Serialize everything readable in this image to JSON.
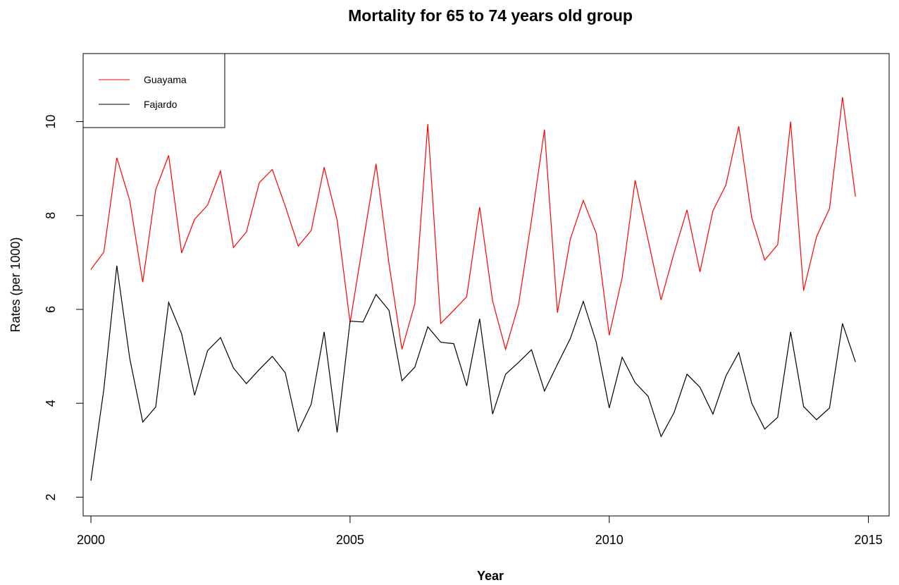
{
  "chart_data": {
    "type": "line",
    "title": "Mortality for 65 to 74 years old group",
    "xlabel": "Year",
    "ylabel": "Rates (per 1000)",
    "xlim": [
      1999.85,
      2015.4
    ],
    "ylim": [
      1.6,
      11.45
    ],
    "xticks": [
      2000,
      2005,
      2010,
      2015
    ],
    "xtick_labels": [
      "2000",
      "2005",
      "2010",
      "2015"
    ],
    "yticks": [
      2,
      4,
      6,
      8,
      10
    ],
    "ytick_labels": [
      "2",
      "4",
      "6",
      "8",
      "10"
    ],
    "grid": false,
    "legend_position": "top-left",
    "x": [
      2000.0,
      2000.25,
      2000.5,
      2000.75,
      2001.0,
      2001.25,
      2001.5,
      2001.75,
      2002.0,
      2002.25,
      2002.5,
      2002.75,
      2003.0,
      2003.25,
      2003.5,
      2003.75,
      2004.0,
      2004.25,
      2004.5,
      2004.75,
      2005.0,
      2005.25,
      2005.5,
      2005.75,
      2006.0,
      2006.25,
      2006.5,
      2006.75,
      2007.0,
      2007.25,
      2007.5,
      2007.75,
      2008.0,
      2008.25,
      2008.5,
      2008.75,
      2009.0,
      2009.25,
      2009.5,
      2009.75,
      2010.0,
      2010.25,
      2010.5,
      2010.75,
      2011.0,
      2011.25,
      2011.5,
      2011.75,
      2012.0,
      2012.25,
      2012.5,
      2012.75,
      2013.0,
      2013.25,
      2013.5,
      2013.75,
      2014.0,
      2014.25,
      2014.5,
      2014.75
    ],
    "series": [
      {
        "name": "Guayama",
        "color": "#ff0000",
        "values": [
          6.85,
          7.22,
          9.23,
          8.32,
          6.58,
          8.55,
          9.28,
          7.2,
          7.92,
          8.22,
          8.95,
          7.32,
          7.65,
          8.7,
          8.98,
          8.2,
          7.35,
          7.68,
          9.03,
          7.9,
          5.72,
          7.42,
          9.1,
          6.98,
          5.15,
          6.12,
          9.95,
          5.7,
          5.98,
          6.27,
          8.18,
          6.18,
          5.15,
          6.1,
          7.9,
          9.83,
          5.93,
          7.5,
          8.32,
          7.62,
          5.45,
          6.68,
          8.75,
          7.48,
          6.2,
          7.2,
          8.12,
          6.8,
          8.1,
          8.65,
          9.9,
          7.95,
          7.05,
          7.38,
          10.0,
          6.4,
          7.55,
          8.15,
          10.52,
          8.4
        ]
      },
      {
        "name": "Fajardo",
        "color": "#000000",
        "values": [
          2.35,
          4.3,
          6.93,
          4.95,
          3.6,
          3.92,
          6.15,
          5.48,
          4.17,
          5.12,
          5.4,
          4.75,
          4.42,
          4.72,
          5.0,
          4.65,
          3.4,
          3.98,
          5.52,
          3.38,
          5.75,
          5.73,
          6.32,
          5.98,
          4.48,
          4.77,
          5.63,
          5.3,
          5.27,
          4.37,
          5.8,
          3.77,
          4.62,
          4.87,
          5.14,
          4.26,
          4.83,
          5.38,
          6.17,
          5.3,
          3.9,
          4.98,
          4.44,
          4.15,
          3.29,
          3.8,
          4.62,
          4.34,
          3.77,
          4.58,
          5.08,
          4.0,
          3.45,
          3.7,
          5.52,
          3.93,
          3.65,
          3.9,
          5.7,
          4.88
        ]
      }
    ]
  }
}
